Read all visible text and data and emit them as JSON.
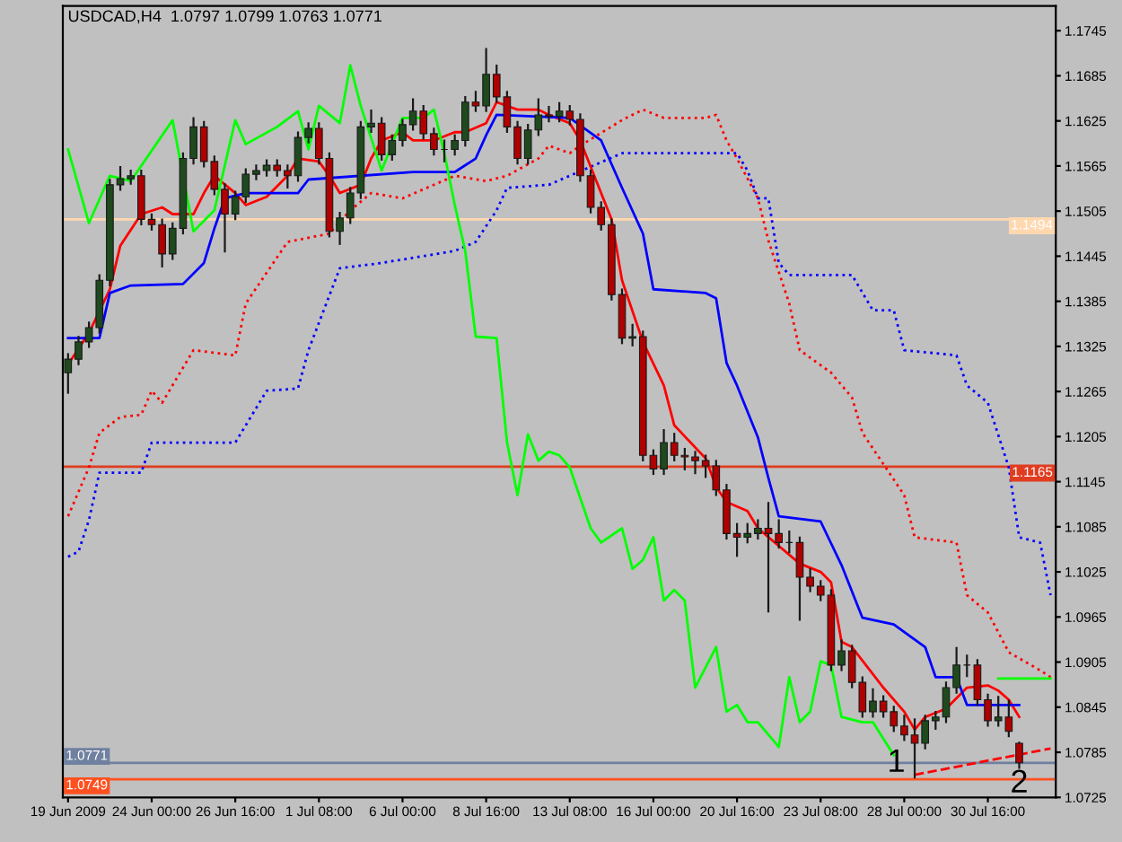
{
  "chart_data": {
    "type": "candlestick",
    "title": "USDCAD,H4  1.0797 1.0799 1.0763 1.0771",
    "categories": [
      "19 Jun 2009",
      null,
      null,
      null,
      null,
      null,
      null,
      null,
      "24 Jun 00:00",
      null,
      null,
      null,
      null,
      null,
      null,
      null,
      "26 Jun 16:00",
      null,
      null,
      null,
      null,
      null,
      null,
      null,
      "1 Jul 08:00",
      null,
      null,
      null,
      null,
      null,
      null,
      null,
      "6 Jul 00:00",
      null,
      null,
      null,
      null,
      null,
      null,
      null,
      "8 Jul 16:00",
      null,
      null,
      null,
      null,
      null,
      null,
      null,
      "13 Jul 08:00",
      null,
      null,
      null,
      null,
      null,
      null,
      null,
      "16 Jul 00:00",
      null,
      null,
      null,
      null,
      null,
      null,
      null,
      "20 Jul 16:00",
      null,
      null,
      null,
      null,
      null,
      null,
      null,
      "23 Jul 08:00",
      null,
      null,
      null,
      null,
      null,
      null,
      null,
      "28 Jul 00:00",
      null,
      null,
      null,
      null,
      null,
      null,
      null,
      "30 Jul 16:00",
      null,
      null,
      null,
      null,
      null,
      null
    ],
    "ohlc": [
      [
        1.129,
        1.1316,
        1.1262,
        1.1308
      ],
      [
        1.1308,
        1.1339,
        1.13,
        1.1331
      ],
      [
        1.1331,
        1.1358,
        1.1323,
        1.135
      ],
      [
        1.135,
        1.1421,
        1.1342,
        1.1413
      ],
      [
        1.1413,
        1.1548,
        1.1405,
        1.154
      ],
      [
        1.154,
        1.1565,
        1.1532,
        1.1548
      ],
      [
        1.1548,
        1.156,
        1.154,
        1.1552
      ],
      [
        1.1552,
        1.156,
        1.1486,
        1.1494
      ],
      [
        1.1494,
        1.1502,
        1.1479,
        1.1487
      ],
      [
        1.1487,
        1.1495,
        1.143,
        1.1448
      ],
      [
        1.1448,
        1.149,
        1.144,
        1.1482
      ],
      [
        1.1482,
        1.1583,
        1.1474,
        1.1575
      ],
      [
        1.1575,
        1.163,
        1.1567,
        1.1617
      ],
      [
        1.1617,
        1.1625,
        1.1563,
        1.1571
      ],
      [
        1.1571,
        1.1579,
        1.1526,
        1.1534
      ],
      [
        1.1534,
        1.1542,
        1.145,
        1.1501
      ],
      [
        1.1501,
        1.1532,
        1.1493,
        1.1524
      ],
      [
        1.1524,
        1.1562,
        1.1516,
        1.1554
      ],
      [
        1.1554,
        1.1567,
        1.1546,
        1.1559
      ],
      [
        1.1559,
        1.1574,
        1.1551,
        1.1566
      ],
      [
        1.1566,
        1.1574,
        1.1551,
        1.1559
      ],
      [
        1.1559,
        1.1567,
        1.1535,
        1.1552
      ],
      [
        1.1552,
        1.1611,
        1.1544,
        1.1603
      ],
      [
        1.1603,
        1.1623,
        1.1595,
        1.1615
      ],
      [
        1.1615,
        1.1623,
        1.1567,
        1.1575
      ],
      [
        1.1575,
        1.1583,
        1.147,
        1.1478
      ],
      [
        1.1478,
        1.1504,
        1.146,
        1.1496
      ],
      [
        1.1496,
        1.1537,
        1.1488,
        1.1529
      ],
      [
        1.1529,
        1.1625,
        1.1521,
        1.1617
      ],
      [
        1.1617,
        1.164,
        1.1609,
        1.1622
      ],
      [
        1.1622,
        1.163,
        1.1572,
        1.158
      ],
      [
        1.158,
        1.1607,
        1.1572,
        1.1599
      ],
      [
        1.1599,
        1.1628,
        1.1591,
        1.162
      ],
      [
        1.162,
        1.1655,
        1.1612,
        1.1638
      ],
      [
        1.1638,
        1.1646,
        1.16,
        1.1608
      ],
      [
        1.1608,
        1.1616,
        1.1579,
        1.1587
      ],
      [
        1.1587,
        1.16,
        1.157,
        1.1587
      ],
      [
        1.1587,
        1.1607,
        1.1579,
        1.1599
      ],
      [
        1.1599,
        1.1658,
        1.1591,
        1.165
      ],
      [
        1.165,
        1.1665,
        1.1637,
        1.1645
      ],
      [
        1.1645,
        1.1722,
        1.1637,
        1.1687
      ],
      [
        1.1687,
        1.17,
        1.1649,
        1.1657
      ],
      [
        1.1657,
        1.1665,
        1.1609,
        1.1617
      ],
      [
        1.1617,
        1.1625,
        1.1567,
        1.1575
      ],
      [
        1.1575,
        1.1621,
        1.1567,
        1.1613
      ],
      [
        1.1613,
        1.1655,
        1.1605,
        1.1633
      ],
      [
        1.1633,
        1.1645,
        1.1623,
        1.1631
      ],
      [
        1.1631,
        1.165,
        1.1623,
        1.1638
      ],
      [
        1.1638,
        1.1646,
        1.1619,
        1.1627
      ],
      [
        1.1627,
        1.1635,
        1.1544,
        1.1552
      ],
      [
        1.1552,
        1.156,
        1.1502,
        1.151
      ],
      [
        1.151,
        1.1518,
        1.1479,
        1.1487
      ],
      [
        1.1487,
        1.1495,
        1.1386,
        1.1394
      ],
      [
        1.1394,
        1.1402,
        1.1328,
        1.1336
      ],
      [
        1.1336,
        1.1355,
        1.1325,
        1.1338
      ],
      [
        1.1338,
        1.1346,
        1.1172,
        1.118
      ],
      [
        1.118,
        1.1188,
        1.1154,
        1.1162
      ],
      [
        1.1162,
        1.1215,
        1.1154,
        1.1197
      ],
      [
        1.1197,
        1.121,
        1.1172,
        1.118
      ],
      [
        1.118,
        1.119,
        1.116,
        1.1178
      ],
      [
        1.1178,
        1.1186,
        1.1155,
        1.1173
      ],
      [
        1.1173,
        1.1181,
        1.115,
        1.1166
      ],
      [
        1.1166,
        1.1174,
        1.1126,
        1.1134
      ],
      [
        1.1134,
        1.1142,
        1.1068,
        1.1076
      ],
      [
        1.1076,
        1.109,
        1.1045,
        1.1071
      ],
      [
        1.1071,
        1.109,
        1.1063,
        1.1076
      ],
      [
        1.1076,
        1.1095,
        1.1068,
        1.1083
      ],
      [
        1.1083,
        1.1118,
        1.0971,
        1.1076
      ],
      [
        1.1076,
        1.1095,
        1.1056,
        1.1064
      ],
      [
        1.1064,
        1.108,
        1.105,
        1.1064
      ],
      [
        1.1064,
        1.1072,
        1.096,
        1.1018
      ],
      [
        1.1018,
        1.103,
        1.0998,
        1.1006
      ],
      [
        1.1006,
        1.1014,
        1.0986,
        1.0994
      ],
      [
        1.0994,
        1.1002,
        1.0893,
        1.0901
      ],
      [
        1.0901,
        1.0935,
        1.0893,
        1.092
      ],
      [
        1.092,
        1.0928,
        1.087,
        1.0878
      ],
      [
        1.0878,
        1.0886,
        1.0831,
        1.0839
      ],
      [
        1.0839,
        1.087,
        1.0831,
        1.0853
      ],
      [
        1.0853,
        1.0861,
        1.0831,
        1.0839
      ],
      [
        1.0839,
        1.0847,
        1.0812,
        1.082
      ],
      [
        1.082,
        1.0835,
        1.08,
        1.0808
      ],
      [
        1.0808,
        1.083,
        1.075,
        1.0797
      ],
      [
        1.0797,
        1.0835,
        1.0789,
        1.0827
      ],
      [
        1.0827,
        1.084,
        1.0815,
        1.0832
      ],
      [
        1.0832,
        1.0879,
        1.0824,
        1.0871
      ],
      [
        1.0871,
        1.0925,
        1.0863,
        1.0901
      ],
      [
        1.0901,
        1.0915,
        1.0885,
        1.0901
      ],
      [
        1.0901,
        1.0909,
        1.0847,
        1.0855
      ],
      [
        1.0855,
        1.0863,
        1.0819,
        1.0827
      ],
      [
        1.0827,
        1.086,
        1.0819,
        1.0832
      ],
      [
        1.0832,
        1.0855,
        1.0805,
        1.0813
      ],
      [
        1.0797,
        1.0799,
        1.0763,
        1.0771
      ],
      null,
      null,
      null
    ],
    "series": [
      {
        "type": "line",
        "color": "#ff0000",
        "line_style": "dotted",
        "values": [
          1.1099,
          null,
          1.1164,
          1.121,
          null,
          1.1231,
          null,
          1.1234,
          1.1266,
          1.125,
          null,
          null,
          1.132,
          null,
          null,
          null,
          1.1313,
          1.1382,
          null,
          null,
          null,
          1.1464,
          null,
          null,
          null,
          1.1475,
          null,
          1.1506,
          null,
          1.1529,
          null,
          null,
          1.1522,
          null,
          null,
          null,
          null,
          1.1552,
          null,
          null,
          1.1545,
          null,
          1.1552,
          null,
          null,
          1.1575,
          1.1592,
          null,
          1.1582,
          1.1592,
          null,
          null,
          null,
          1.1626,
          null,
          1.164,
          null,
          1.1629,
          null,
          null,
          null,
          1.1629,
          1.1633,
          1.1599,
          1.1575,
          null,
          1.1522,
          1.1466,
          null,
          1.1382,
          1.132,
          null,
          null,
          1.129,
          null,
          1.1257,
          1.121,
          null,
          null,
          null,
          1.1127,
          1.1071,
          null,
          null,
          null,
          1.1064,
          1.0994,
          null,
          1.0971,
          null,
          1.0918,
          null,
          null,
          1.0894,
          1.0885
        ]
      },
      {
        "type": "line",
        "color": "#0000ff",
        "line_style": "dotted",
        "values": [
          1.1045,
          1.1052,
          1.1094,
          1.1157,
          null,
          null,
          null,
          1.1157,
          1.1197,
          null,
          null,
          null,
          null,
          null,
          null,
          null,
          1.1197,
          1.122,
          null,
          1.1266,
          null,
          null,
          1.1269,
          1.132,
          null,
          null,
          1.1429,
          null,
          null,
          null,
          1.1436,
          null,
          null,
          null,
          null,
          null,
          null,
          1.1452,
          null,
          1.1464,
          null,
          1.1506,
          1.1536,
          null,
          null,
          null,
          1.154,
          null,
          1.1552,
          null,
          null,
          null,
          null,
          1.1582,
          null,
          null,
          null,
          null,
          null,
          null,
          null,
          null,
          null,
          null,
          1.1582,
          1.1559,
          1.1522,
          1.1522,
          1.1436,
          1.142,
          null,
          null,
          null,
          null,
          null,
          1.142,
          null,
          1.1373,
          null,
          1.1373,
          1.132,
          null,
          null,
          null,
          null,
          1.1313,
          1.1273,
          null,
          1.125,
          null,
          1.1164,
          1.1071,
          null,
          1.1064,
          1.0994
        ]
      },
      {
        "type": "line",
        "color": "#ff0000",
        "line_style": "solid",
        "values": [
          1.1301,
          null,
          1.1343,
          null,
          1.1401,
          1.1459,
          null,
          1.1501,
          null,
          1.151,
          1.1501,
          null,
          1.1501,
          1.1529,
          1.1552,
          null,
          1.1529,
          1.1513,
          null,
          1.1524,
          null,
          1.1552,
          1.1575,
          null,
          1.1571,
          1.1552,
          1.1529,
          null,
          1.154,
          1.1575,
          1.1599,
          null,
          1.161,
          1.1599,
          null,
          1.1599,
          null,
          1.161,
          1.161,
          null,
          1.1622,
          1.165,
          null,
          1.164,
          null,
          1.164,
          1.1633,
          null,
          1.1622,
          1.1599,
          1.1564,
          null,
          1.1494,
          1.1413,
          null,
          1.1331,
          null,
          1.1273,
          1.122,
          null,
          null,
          1.1176,
          1.1138,
          1.1118,
          null,
          1.1106,
          1.1083,
          null,
          null,
          null,
          1.1036,
          null,
          1.1025,
          1.1011,
          1.0932,
          1.0925,
          null,
          null,
          1.0871,
          null,
          1.0839,
          1.0815,
          1.0832,
          null,
          1.0843,
          null,
          1.0871,
          null,
          1.0874,
          1.0867,
          1.0855,
          1.0832,
          null,
          null,
          null
        ]
      },
      {
        "type": "line",
        "color": "#0000ff",
        "line_style": "solid",
        "values": [
          1.1336,
          null,
          null,
          1.1336,
          1.1396,
          null,
          1.1406,
          null,
          null,
          null,
          null,
          1.1408,
          null,
          1.1436,
          1.1482,
          1.1522,
          null,
          1.1529,
          null,
          null,
          null,
          null,
          1.1529,
          1.1547,
          null,
          null,
          null,
          null,
          null,
          null,
          null,
          null,
          null,
          1.1557,
          null,
          null,
          null,
          1.1557,
          null,
          1.1575,
          1.1606,
          1.1633,
          null,
          null,
          null,
          null,
          null,
          null,
          1.1629,
          null,
          null,
          1.1599,
          null,
          1.1536,
          null,
          1.1475,
          1.1401,
          null,
          null,
          null,
          null,
          1.1396,
          1.1389,
          1.1303,
          1.1273,
          null,
          1.1204,
          1.115,
          1.1099,
          null,
          null,
          null,
          1.1092,
          null,
          1.1034,
          null,
          1.0964,
          null,
          null,
          1.0955,
          null,
          null,
          1.0925,
          1.0885,
          null,
          1.0885,
          1.0848,
          null,
          null,
          null,
          null,
          1.0848,
          null,
          null,
          null
        ]
      },
      {
        "type": "line",
        "color": "#00ff00",
        "line_style": "solid",
        "values": [
          1.1587,
          null,
          1.1489,
          null,
          1.1552,
          null,
          1.1545,
          null,
          null,
          null,
          1.1626,
          null,
          1.1478,
          null,
          1.1506,
          null,
          1.1626,
          1.1594,
          null,
          null,
          1.1617,
          null,
          1.1638,
          1.1587,
          1.1645,
          null,
          1.1622,
          1.1699,
          1.1645,
          null,
          1.1559,
          null,
          1.1629,
          null,
          1.1629,
          1.164,
          1.1582,
          1.1513,
          1.1452,
          1.1338,
          null,
          1.1336,
          1.1197,
          1.1127,
          1.1208,
          1.1173,
          1.1185,
          1.118,
          1.1164,
          null,
          1.1083,
          1.1064,
          null,
          1.1083,
          1.1029,
          1.1041,
          1.1071,
          1.0987,
          1.1001,
          1.0987,
          1.0871,
          null,
          1.0925,
          1.0839,
          1.0848,
          1.0825,
          1.0825,
          null,
          1.0792,
          1.0885,
          1.0825,
          1.0839,
          1.0906,
          1.0901,
          1.0832,
          null,
          1.0825,
          1.0825,
          null,
          1.0781,
          null,
          null,
          null,
          null,
          null,
          null,
          null,
          null,
          null,
          null,
          null,
          null,
          null,
          null,
          null
        ]
      },
      {
        "type": "line",
        "color": "#00ff00",
        "line_style": "solid",
        "values": [
          null,
          null,
          null,
          null,
          null,
          null,
          null,
          null,
          null,
          null,
          null,
          null,
          null,
          null,
          null,
          null,
          null,
          null,
          null,
          null,
          null,
          null,
          null,
          null,
          null,
          null,
          null,
          null,
          null,
          null,
          null,
          null,
          null,
          null,
          null,
          null,
          null,
          null,
          null,
          null,
          null,
          null,
          null,
          null,
          null,
          null,
          null,
          null,
          null,
          null,
          null,
          null,
          null,
          null,
          null,
          null,
          null,
          null,
          null,
          null,
          null,
          null,
          null,
          null,
          null,
          null,
          null,
          null,
          null,
          null,
          null,
          null,
          null,
          null,
          null,
          null,
          null,
          null,
          null,
          null,
          null,
          null,
          null,
          null,
          null,
          null,
          null,
          null,
          null,
          1.0883,
          null,
          null,
          null,
          null,
          1.0883
        ]
      },
      {
        "type": "line",
        "color": "#ff0000",
        "line_style": "dashed",
        "values": [
          null,
          null,
          null,
          null,
          null,
          null,
          null,
          null,
          null,
          null,
          null,
          null,
          null,
          null,
          null,
          null,
          null,
          null,
          null,
          null,
          null,
          null,
          null,
          null,
          null,
          null,
          null,
          null,
          null,
          null,
          null,
          null,
          null,
          null,
          null,
          null,
          null,
          null,
          null,
          null,
          null,
          null,
          null,
          null,
          null,
          null,
          null,
          null,
          null,
          null,
          null,
          null,
          null,
          null,
          null,
          null,
          null,
          null,
          null,
          null,
          null,
          null,
          null,
          null,
          null,
          null,
          null,
          null,
          null,
          null,
          null,
          null,
          null,
          null,
          null,
          null,
          null,
          null,
          null,
          null,
          null,
          1.0755,
          null,
          null,
          null,
          null,
          null,
          null,
          null,
          null,
          null,
          null,
          null,
          null,
          1.079
        ]
      }
    ],
    "ref_lines": [
      {
        "axis": "y",
        "value": 1.1494,
        "label": "1.1494",
        "color": "#ffd8b0"
      },
      {
        "axis": "y",
        "value": 1.1165,
        "label": "1.1165",
        "color": "#e03c20"
      },
      {
        "axis": "y",
        "value": 1.0771,
        "label": "1.0771",
        "color": "#7080a0"
      },
      {
        "axis": "y",
        "value": 1.0749,
        "label": "1.0749",
        "color": "#ff5020"
      }
    ],
    "annotations": [
      "1",
      "2"
    ],
    "ylim": [
      1.0725,
      1.1778
    ],
    "yticks": [
      1.0725,
      1.0785,
      1.0845,
      1.0905,
      1.0965,
      1.1025,
      1.1085,
      1.1145,
      1.1205,
      1.1265,
      1.1325,
      1.1385,
      1.1445,
      1.1505,
      1.1565,
      1.1625,
      1.1685,
      1.1745
    ],
    "grid": false
  }
}
